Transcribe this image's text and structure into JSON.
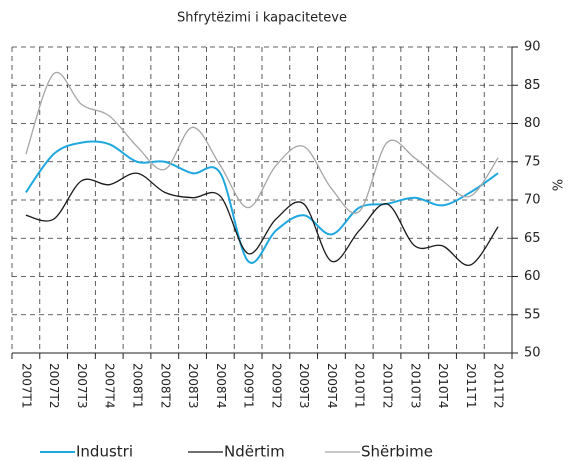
{
  "chart_data": {
    "type": "line",
    "title": "Shfrytëzimi i kapaciteteve",
    "y_axis_label": "%",
    "categories": [
      "2007T1",
      "2007T2",
      "2007T3",
      "2007T4",
      "2008T1",
      "2008T2",
      "2008T3",
      "2008T4",
      "2009T1",
      "2009T2",
      "2009T3",
      "2009T4",
      "2010T1",
      "2010T2",
      "2010T3",
      "2010T4",
      "2011T1",
      "2011T2"
    ],
    "series": [
      {
        "name": "Industri",
        "color": "#1fa8e0",
        "values": [
          71,
          76,
          77.5,
          77.3,
          75,
          75,
          73.5,
          73.5,
          62,
          66,
          68,
          65.5,
          69,
          69.5,
          70.3,
          69.3,
          71,
          73.5
        ]
      },
      {
        "name": "Ndërtim",
        "color": "#1a1a1a",
        "values": [
          68,
          67.5,
          72.5,
          72,
          73.5,
          71,
          70.3,
          70.5,
          63,
          67.5,
          69.5,
          62,
          66,
          69.5,
          64,
          64,
          61.5,
          66.5
        ]
      },
      {
        "name": "Shërbime",
        "color": "#a6a6a6",
        "values": [
          76,
          86.5,
          82.5,
          81,
          77,
          74,
          79.5,
          74.5,
          69,
          74.5,
          77,
          71.5,
          68.5,
          77.5,
          75.5,
          72.5,
          70.5,
          75.5
        ]
      }
    ],
    "ylim": [
      50,
      90
    ],
    "yticks": [
      50,
      55,
      60,
      65,
      70,
      75,
      80,
      85,
      90
    ],
    "grid": true,
    "legend": "bottom"
  }
}
